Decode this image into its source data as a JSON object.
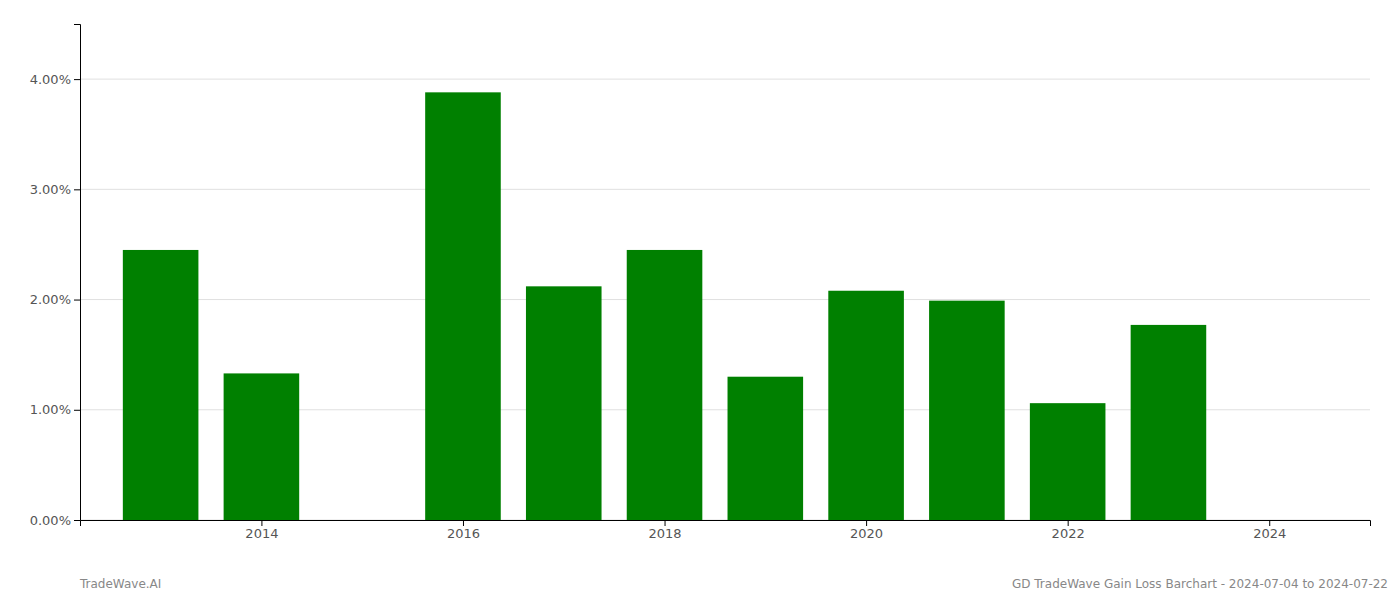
{
  "chart_data": {
    "type": "bar",
    "x": [
      2013,
      2014,
      2016,
      2017,
      2018,
      2019,
      2020,
      2021,
      2022,
      2023
    ],
    "values": [
      0.0245,
      0.0133,
      0.0388,
      0.0212,
      0.0245,
      0.013,
      0.0208,
      0.0199,
      0.0106,
      0.0177
    ],
    "color": "#008000",
    "xlim": [
      2012.2,
      2025.0
    ],
    "xticks": [
      2014,
      2016,
      2018,
      2020,
      2022,
      2024
    ],
    "ylim": [
      0,
      0.045
    ],
    "yticks": [
      {
        "value": 0.0,
        "label": "0.00%"
      },
      {
        "value": 0.01,
        "label": "1.00%"
      },
      {
        "value": 0.02,
        "label": "2.00%"
      },
      {
        "value": 0.03,
        "label": "3.00%"
      },
      {
        "value": 0.04,
        "label": "4.00%"
      }
    ],
    "grid": true,
    "annotations": [
      "TradeWave.AI",
      "GD TradeWave Gain Loss Barchart - 2024-07-04 to 2024-07-22"
    ]
  }
}
